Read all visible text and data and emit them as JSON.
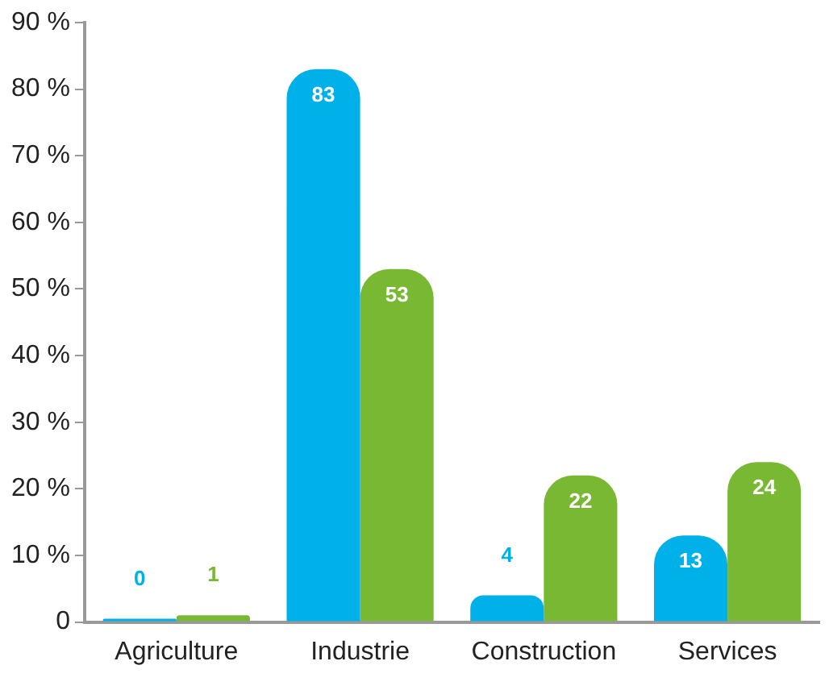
{
  "chart_data": {
    "type": "bar",
    "categories": [
      "Agriculture",
      "Industrie",
      "Construction",
      "Services"
    ],
    "series": [
      {
        "color": "#00b0e8",
        "values": [
          0,
          83,
          4,
          13
        ]
      },
      {
        "color": "#78b833",
        "values": [
          1,
          53,
          22,
          24
        ]
      }
    ],
    "ylim": [
      0,
      90
    ],
    "yticks": [
      0,
      {
        "value": 10,
        "label": "10 %"
      },
      {
        "value": 20,
        "label": "20 %"
      },
      {
        "value": 30,
        "label": "30 %"
      },
      {
        "value": 40,
        "label": "40 %"
      },
      {
        "value": 50,
        "label": "50 %"
      },
      {
        "value": 60,
        "label": "60 %"
      },
      {
        "value": 70,
        "label": "70 %"
      },
      {
        "value": 80,
        "label": "80 %"
      },
      {
        "value": 90,
        "label": "90 %"
      }
    ],
    "grid": false,
    "legend": false,
    "data_labels": true
  }
}
